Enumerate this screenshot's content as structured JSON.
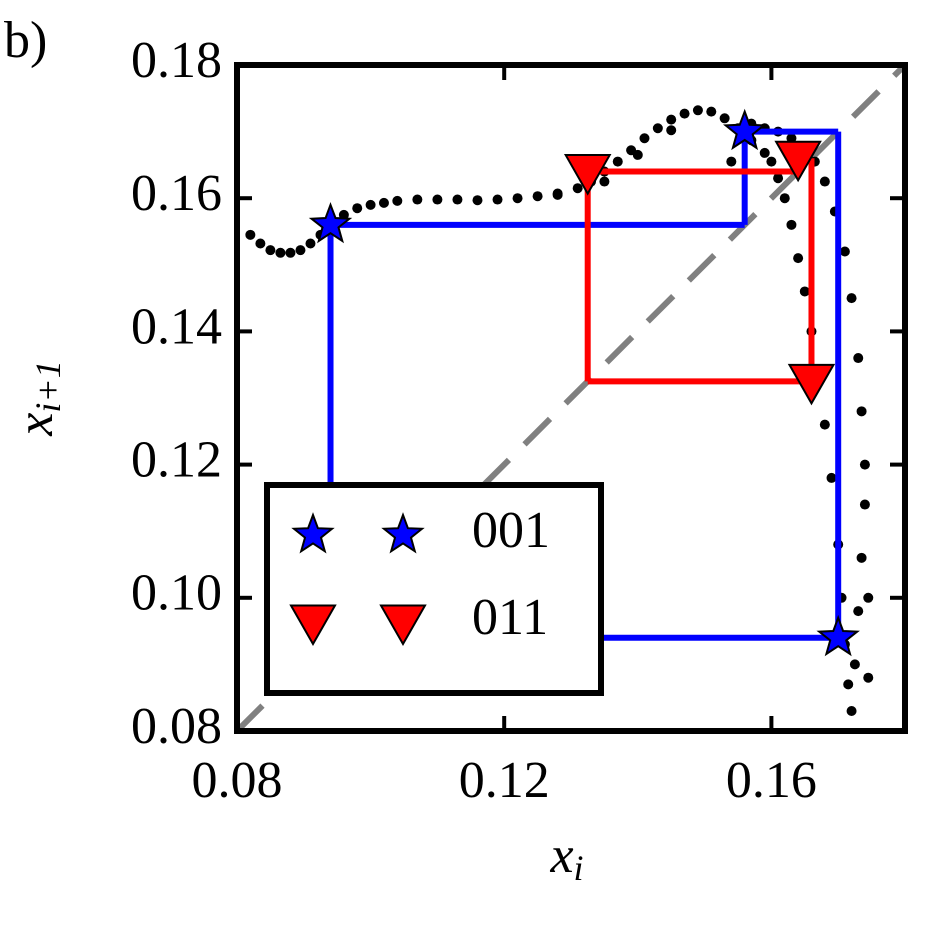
{
  "chart_data": {
    "type": "scatter",
    "panel_label": "b)",
    "xlabel": {
      "text": "x",
      "subscript": "i"
    },
    "ylabel": {
      "text": "x",
      "subscript": "i+1"
    },
    "xlim": [
      0.08,
      0.18
    ],
    "ylim": [
      0.08,
      0.18
    ],
    "xticks": [
      0.08,
      0.12,
      0.16
    ],
    "yticks": [
      0.08,
      {
        "value": 0.1,
        "label": "0.10"
      },
      0.12,
      0.14,
      0.16,
      0.18
    ],
    "diagonal": true,
    "legend": "lower left",
    "series": [
      {
        "color": "#000000",
        "marker": "dot",
        "x": [
          0.082,
          0.0835,
          0.085,
          0.0865,
          0.088,
          0.0895,
          0.091,
          0.0925,
          0.094,
          0.096,
          0.098,
          0.1,
          0.102,
          0.104,
          0.107,
          0.11,
          0.113,
          0.116,
          0.119,
          0.122,
          0.125,
          0.128,
          0.131,
          0.133,
          0.135,
          0.137,
          0.139,
          0.141,
          0.143,
          0.145,
          0.147,
          0.149,
          0.151,
          0.153,
          0.155,
          0.157,
          0.159,
          0.16,
          0.161,
          0.162,
          0.163,
          0.164,
          0.165,
          0.166,
          0.167,
          0.168,
          0.169,
          0.17,
          0.1705,
          0.171,
          0.1715,
          0.172,
          0.1725,
          0.173,
          0.1735,
          0.174,
          0.1745,
          0.1745,
          0.174,
          0.1735,
          0.173,
          0.172,
          0.171,
          0.1695,
          0.168,
          0.1665,
          0.165,
          0.163,
          0.161,
          0.159,
          0.157,
          0.1555,
          0.154,
          0.135,
          0.14,
          0.128,
          0.145
        ],
        "y": [
          0.1545,
          0.1532,
          0.1522,
          0.1518,
          0.1518,
          0.1522,
          0.1532,
          0.1545,
          0.156,
          0.1575,
          0.1585,
          0.159,
          0.1593,
          0.1596,
          0.1598,
          0.1598,
          0.1598,
          0.1597,
          0.1598,
          0.16,
          0.1603,
          0.1607,
          0.1615,
          0.1625,
          0.164,
          0.1655,
          0.1672,
          0.169,
          0.1705,
          0.1718,
          0.1727,
          0.1732,
          0.173,
          0.172,
          0.1705,
          0.1687,
          0.1668,
          0.1655,
          0.163,
          0.16,
          0.156,
          0.151,
          0.146,
          0.14,
          0.1335,
          0.126,
          0.118,
          0.108,
          0.1,
          0.093,
          0.087,
          0.083,
          0.09,
          0.098,
          0.106,
          0.114,
          0.1,
          0.088,
          0.12,
          0.128,
          0.136,
          0.145,
          0.152,
          0.158,
          0.1625,
          0.1655,
          0.1675,
          0.169,
          0.17,
          0.1705,
          0.1712,
          0.1695,
          0.1655,
          0.1625,
          0.1665,
          0.1605,
          0.1702
        ]
      },
      {
        "name": "001",
        "color": "#0000ff",
        "marker": "star",
        "x": [
          0.094,
          0.156,
          0.17
        ],
        "y": [
          0.156,
          0.17,
          0.094
        ]
      },
      {
        "name": "011",
        "color": "#ff0000",
        "marker": "triangle",
        "x": [
          0.1325,
          0.164,
          0.166
        ],
        "y": [
          0.164,
          0.166,
          0.1325
        ]
      }
    ]
  }
}
